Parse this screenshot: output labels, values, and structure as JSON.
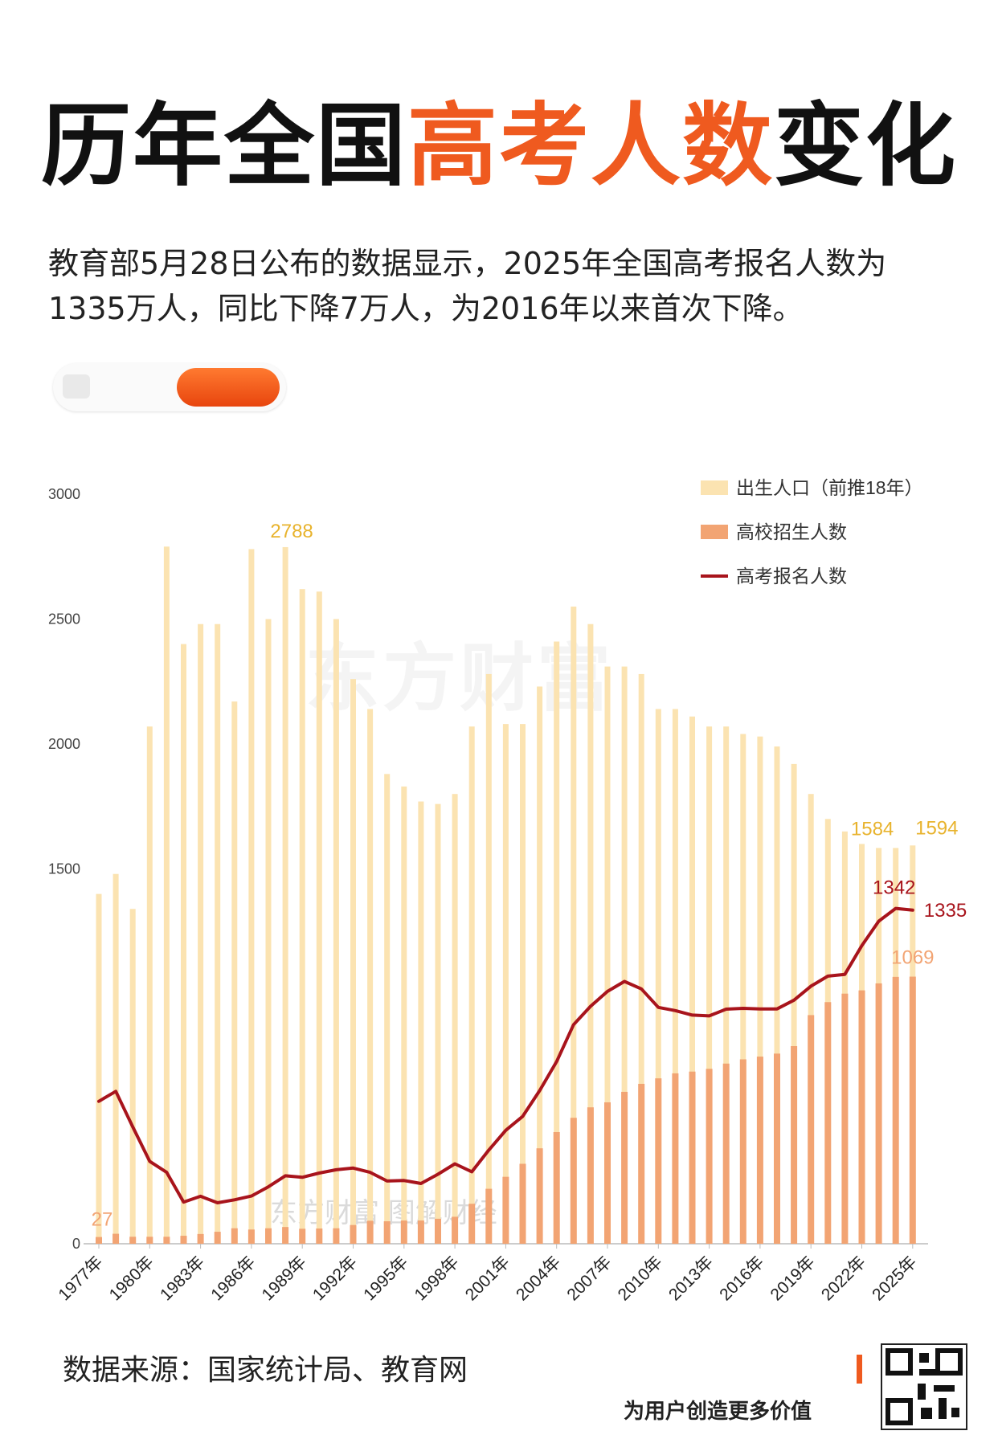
{
  "header": {
    "title_part1": "历年全国",
    "title_part2": "高考人数",
    "title_part3": "变化",
    "description": "教育部5月28日公布的数据显示，2025年全国高考报名人数为1335万人，同比下降7万人，为2016年以来首次下降。"
  },
  "watermark": "东方财富",
  "watermark_small": "东方财富 图解财经",
  "footer": {
    "source": "数据来源：国家统计局、教育网",
    "slogan": "为用户创造更多价值"
  },
  "colors": {
    "accent_orange": "#ef5a1f",
    "births_bar": "#fbe3b1",
    "enrollment_bar": "#f2a473",
    "applicants_line": "#a8141c",
    "births_label": "#e8b32d"
  },
  "chart_data": {
    "type": "bar",
    "ylim": [
      0,
      3000
    ],
    "y_ticks": [
      0,
      1500,
      2000,
      2500,
      3000
    ],
    "x_tick_labels": [
      "1977年",
      "1980年",
      "1983年",
      "1986年",
      "1989年",
      "1992年",
      "1995年",
      "1998年",
      "2001年",
      "2004年",
      "2007年",
      "2010年",
      "2013年",
      "2016年",
      "2019年",
      "2022年",
      "2025年"
    ],
    "x": [
      1977,
      1978,
      1979,
      1980,
      1981,
      1982,
      1983,
      1984,
      1985,
      1986,
      1987,
      1988,
      1989,
      1990,
      1991,
      1992,
      1993,
      1994,
      1995,
      1996,
      1997,
      1998,
      1999,
      2000,
      2001,
      2002,
      2003,
      2004,
      2005,
      2006,
      2007,
      2008,
      2009,
      2010,
      2011,
      2012,
      2013,
      2014,
      2015,
      2016,
      2017,
      2018,
      2019,
      2020,
      2021,
      2022,
      2023,
      2024,
      2025
    ],
    "legend_position": "top-right",
    "series": [
      {
        "name": "出生人口（前推18年）",
        "type": "bar",
        "values": [
          1400,
          1480,
          1340,
          2070,
          2790,
          2400,
          2480,
          2480,
          2170,
          2780,
          2500,
          2788,
          2620,
          2610,
          2500,
          2260,
          2140,
          1880,
          1830,
          1770,
          1760,
          1800,
          2070,
          2280,
          2080,
          2080,
          2230,
          2410,
          2550,
          2480,
          2310,
          2310,
          2280,
          2140,
          2140,
          2110,
          2070,
          2070,
          2040,
          2030,
          1990,
          1920,
          1800,
          1700,
          1650,
          1600,
          1584,
          1584,
          1594
        ]
      },
      {
        "name": "高校招生人数",
        "type": "bar",
        "values": [
          27,
          40,
          28,
          28,
          28,
          32,
          39,
          48,
          62,
          57,
          62,
          67,
          60,
          61,
          62,
          75,
          92,
          90,
          93,
          93,
          100,
          108,
          160,
          220,
          268,
          320,
          382,
          447,
          504,
          546,
          566,
          608,
          640,
          662,
          682,
          689,
          700,
          721,
          738,
          749,
          761,
          791,
          915,
          967,
          1001,
          1014,
          1042,
          1068,
          1069
        ]
      },
      {
        "name": "高考报名人数",
        "type": "line",
        "values": [
          570,
          610,
          468,
          330,
          286,
          167,
          190,
          164,
          176,
          191,
          228,
          272,
          266,
          283,
          296,
          303,
          286,
          251,
          253,
          241,
          278,
          320,
          288,
          375,
          454,
          510,
          613,
          729,
          877,
          950,
          1010,
          1050,
          1020,
          946,
          933,
          915,
          912,
          939,
          942,
          940,
          940,
          975,
          1031,
          1071,
          1078,
          1193,
          1291,
          1342,
          1335
        ]
      }
    ],
    "annotations": [
      {
        "series": "出生人口（前推18年）",
        "x": 1988,
        "label": "2788"
      },
      {
        "series": "出生人口（前推18年）",
        "x": 2023,
        "label": "1584"
      },
      {
        "series": "出生人口（前推18年）",
        "x": 2025,
        "label": "1594"
      },
      {
        "series": "高校招生人数",
        "x": 1977,
        "label": "27"
      },
      {
        "series": "高校招生人数",
        "x": 2025,
        "label": "1069"
      },
      {
        "series": "高考报名人数",
        "x": 2024,
        "label": "1342"
      },
      {
        "series": "高考报名人数",
        "x": 2025,
        "label": "1335"
      }
    ]
  }
}
